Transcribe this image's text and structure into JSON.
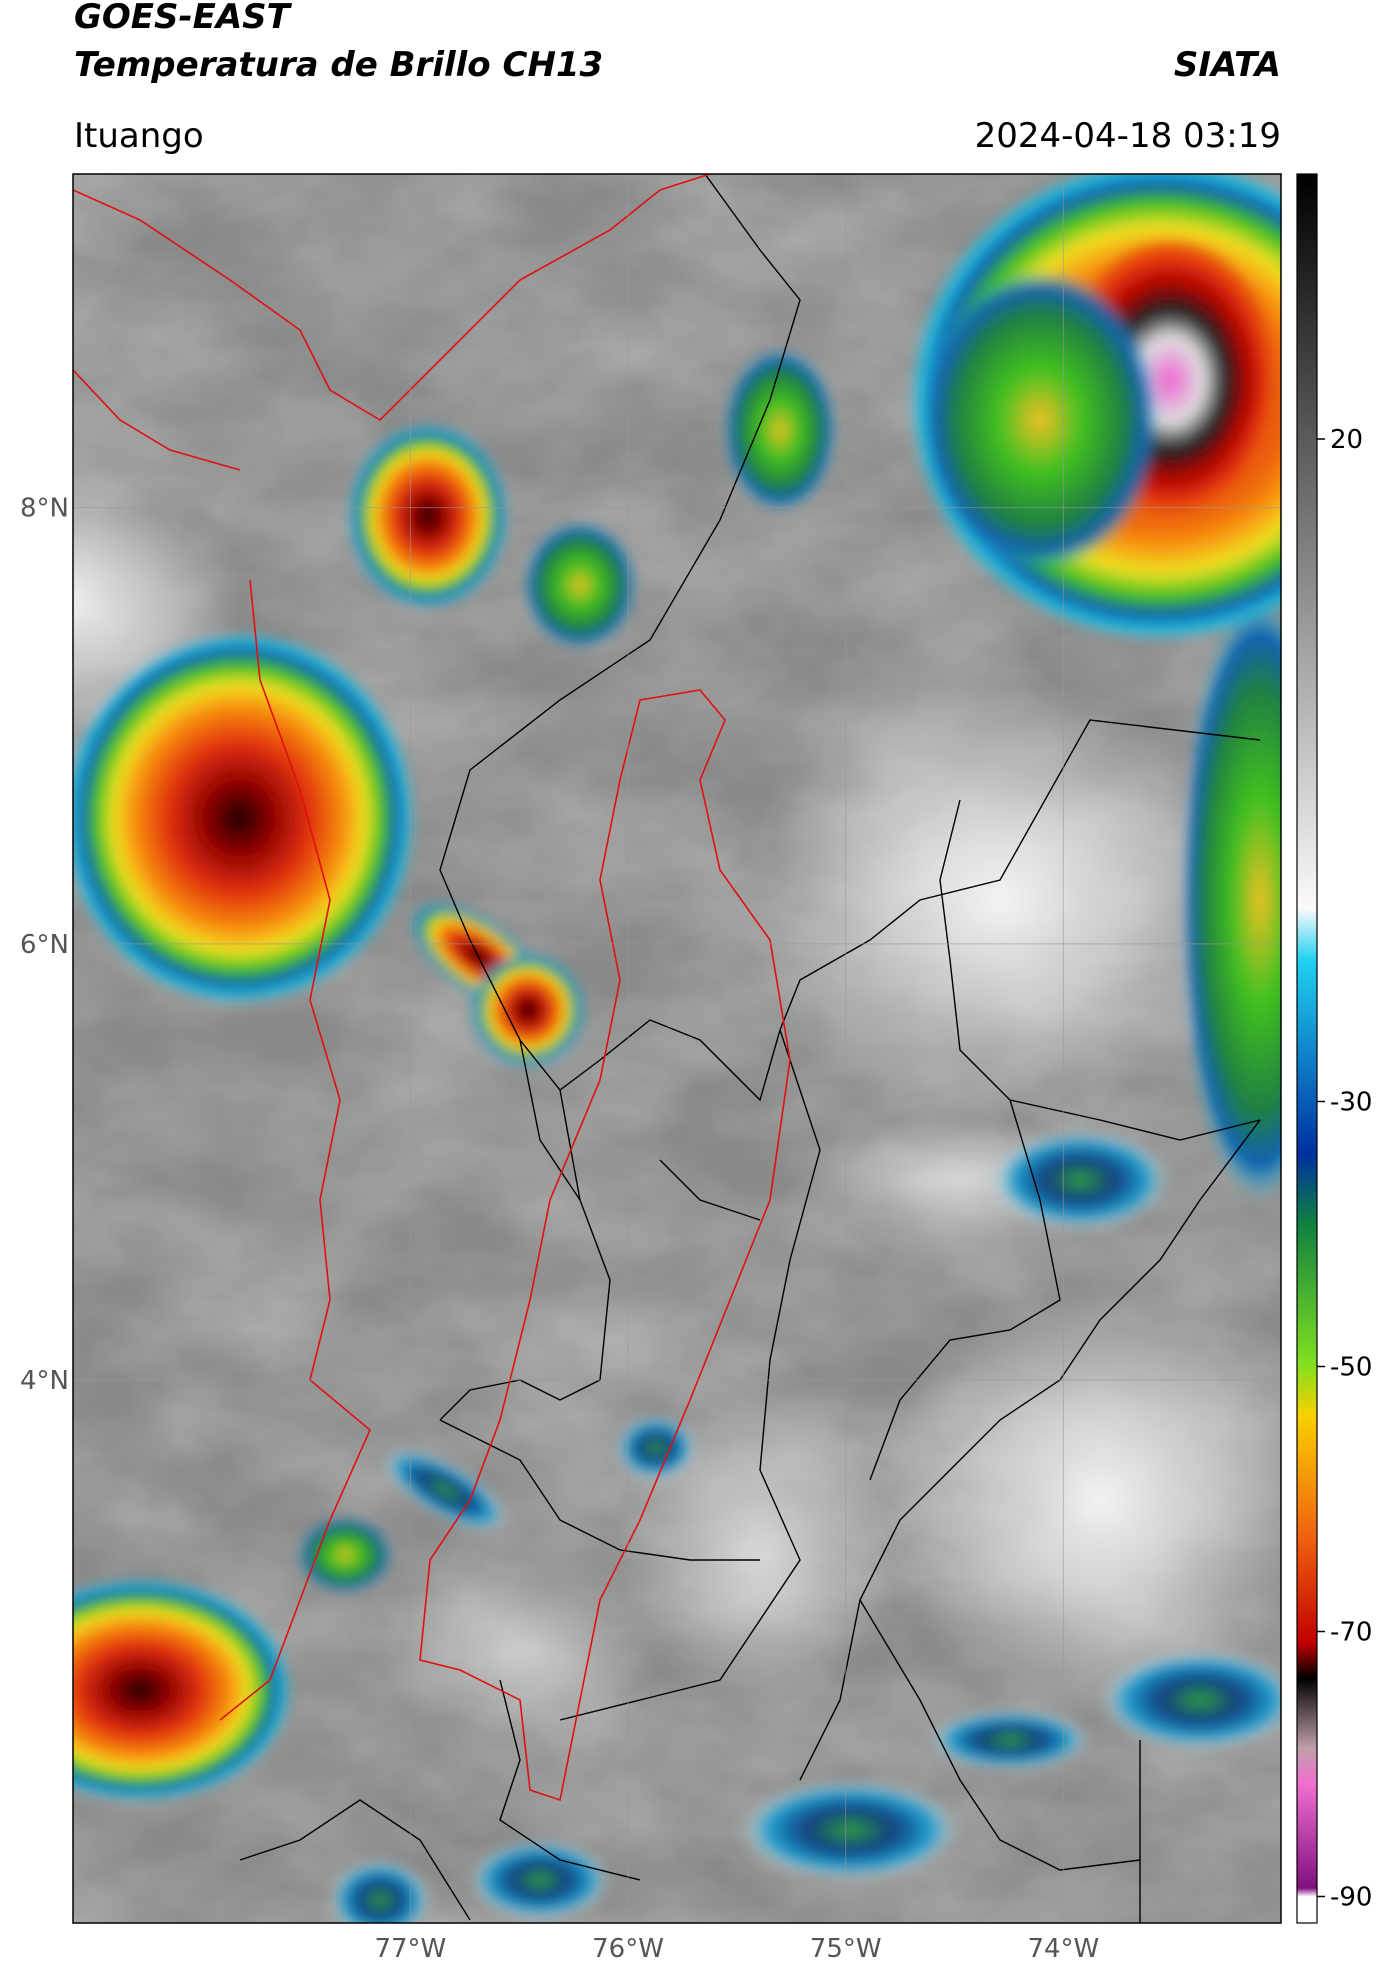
{
  "header": {
    "title_line1": "GOES-EAST",
    "title_line2": "Temperatura de Brillo CH13",
    "source": "SIATA",
    "location": "Ituango",
    "datetime": "2024-04-18 03:19"
  },
  "map": {
    "lat_lim": [
      1.51,
      9.53
    ],
    "lon_lim": [
      -78.55,
      -73.0
    ],
    "lat_ticks": [
      {
        "value": 8,
        "label": "8°N"
      },
      {
        "value": 6,
        "label": "6°N"
      },
      {
        "value": 4,
        "label": "4°N"
      }
    ],
    "lon_ticks": [
      {
        "value": -77,
        "label": "77°W"
      },
      {
        "value": -76,
        "label": "76°W"
      },
      {
        "value": -75,
        "label": "75°W"
      },
      {
        "value": -74,
        "label": "74°W"
      }
    ],
    "colorbar": {
      "lim": [
        -92,
        40
      ],
      "ticks": [
        20,
        -30,
        -50,
        -70,
        -90
      ]
    }
  }
}
